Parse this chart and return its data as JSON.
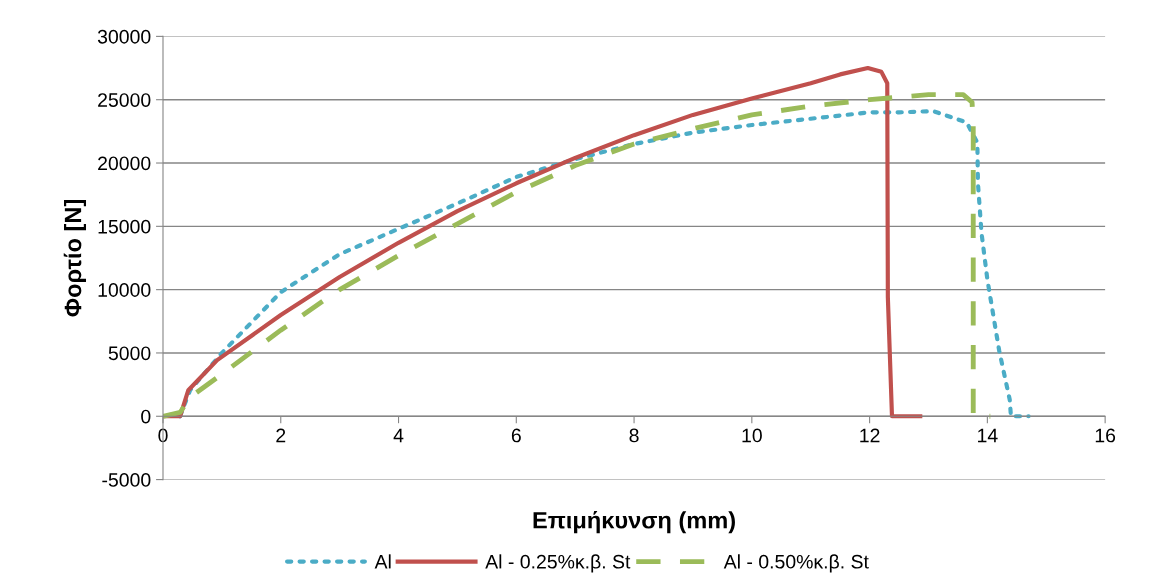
{
  "chart_data": {
    "type": "line",
    "xlabel": "Επιμήκυνση (mm)",
    "ylabel": "Φορτίο [N]",
    "xlim": [
      0,
      16
    ],
    "xticks": [
      0,
      2,
      4,
      6,
      8,
      10,
      12,
      14,
      16
    ],
    "ylim": [
      -5000,
      30000
    ],
    "yticks": [
      -5000,
      0,
      5000,
      10000,
      15000,
      20000,
      25000,
      30000
    ],
    "grid": "y",
    "legend": "bottom",
    "marker": "none",
    "series": [
      {
        "name": "Al",
        "color": "#4bacc6",
        "line_style": "dotted",
        "x": [
          0.29,
          0.46,
          1,
          2,
          3,
          4,
          5,
          6,
          7,
          8,
          9,
          10,
          11,
          12,
          12.5,
          13.08,
          13.65,
          13.83,
          13.84,
          13.9,
          14.0,
          14.2,
          14.38,
          14.4,
          14.7
        ],
        "values": [
          0,
          2060,
          5000,
          9800,
          12800,
          14800,
          16800,
          18900,
          20300,
          21500,
          22400,
          23000,
          23500,
          24000,
          24000,
          24100,
          23200,
          21600,
          18400,
          14500,
          10800,
          5200,
          1300,
          0,
          0
        ]
      },
      {
        "name": "Al - 0.25%κ.β. St",
        "color": "#c0504d",
        "line_style": "solid",
        "x": [
          0,
          0.29,
          0.43,
          0.92,
          2,
          3,
          4,
          5,
          6,
          7,
          8,
          9,
          10,
          11,
          11.5,
          11.97,
          12.2,
          12.3,
          12.31,
          12.38,
          12.86
        ],
        "values": [
          0,
          0,
          2060,
          4430,
          8000,
          11000,
          13700,
          16200,
          18400,
          20400,
          22200,
          23800,
          25100,
          26300,
          27000,
          27500,
          27200,
          26300,
          9400,
          0,
          0
        ]
      },
      {
        "name": "Al - 0.50%κ.β. St",
        "color": "#9bbb59",
        "line_style": "dashed",
        "x": [
          0,
          0.29,
          0.46,
          1.09,
          2,
          3,
          4,
          5,
          6,
          7,
          8,
          9,
          10,
          11,
          12,
          13,
          13.59,
          13.74,
          13.76,
          13.76,
          14.05
        ],
        "values": [
          0,
          300,
          1500,
          3640,
          6800,
          10000,
          12700,
          15200,
          17700,
          19800,
          21500,
          22700,
          23800,
          24500,
          25000,
          25400,
          25400,
          24800,
          23000,
          0,
          0
        ]
      }
    ]
  }
}
